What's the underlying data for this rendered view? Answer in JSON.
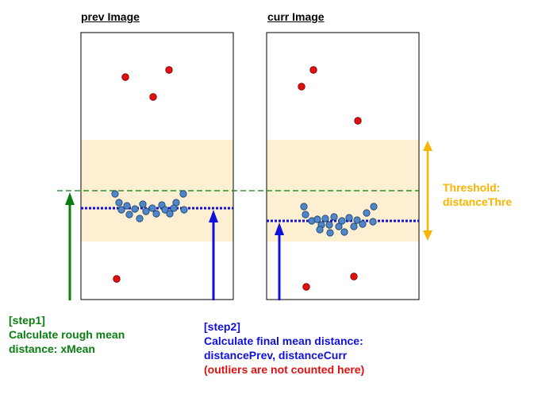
{
  "panels": {
    "prev": {
      "title": "prev Image"
    },
    "curr": {
      "title": "curr Image"
    }
  },
  "threshold": {
    "line1": "Threshold:",
    "line2": "distanceThre"
  },
  "step1": {
    "line1": "[step1]",
    "line2": "Calculate rough mean",
    "line3": "distance: xMean"
  },
  "step2": {
    "line1": "[step2]",
    "line2": "Calculate final mean distance:",
    "line3": "distancePrev, distanceCurr",
    "line4": "(outliers are not counted here)"
  },
  "colors": {
    "band": "#fdefd2",
    "xmean": "#0a7d10",
    "mean": "#1010dd",
    "threshold": "#f7b500",
    "inlier": "#4e86c8",
    "outlier": "#e01010"
  }
}
